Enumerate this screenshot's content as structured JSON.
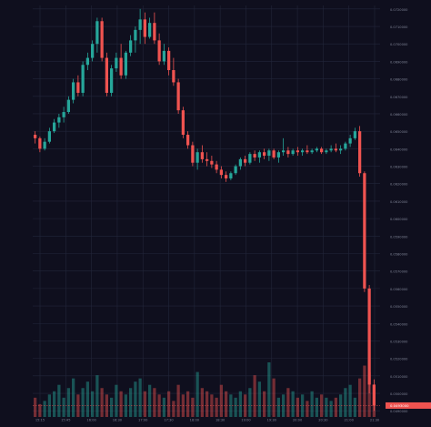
{
  "chart_data": {
    "type": "candlestick",
    "colors": {
      "background": "#0f0f1e",
      "grid": "#22263a",
      "up": "#26a69a",
      "down": "#ef5350",
      "axis_text": "#7f8496",
      "last_price_bg": "#ef5350"
    },
    "grid": true,
    "price_axis": "right",
    "y_ticks": [
      "0.0720000",
      "0.0710000",
      "0.0700000",
      "0.0690000",
      "0.0680000",
      "0.0670000",
      "0.0660000",
      "0.0650000",
      "0.0640000",
      "0.0630000",
      "0.0620000",
      "0.0610000",
      "0.0600000",
      "0.0590000",
      "0.0580000",
      "0.0570000",
      "0.0560000",
      "0.0550000",
      "0.0540000",
      "0.0530000",
      "0.0520000",
      "0.0510000",
      "0.0500000",
      "0.0490000"
    ],
    "ylim": [
      0.04875,
      0.0722
    ],
    "x_tick_labels": [
      "15:15",
      "15:45",
      "16:00",
      "16:30",
      "17:00",
      "17:30",
      "18:00",
      "18:30",
      "19:00",
      "19:30",
      "20:00",
      "20:30",
      "21:00",
      "21:30"
    ],
    "last_price": "0.0493000",
    "candles": [
      {
        "o": 0.0648,
        "h": 0.065,
        "l": 0.0643,
        "c": 0.0646
      },
      {
        "o": 0.0646,
        "h": 0.0647,
        "l": 0.0638,
        "c": 0.064
      },
      {
        "o": 0.064,
        "h": 0.0646,
        "l": 0.0639,
        "c": 0.0644
      },
      {
        "o": 0.0644,
        "h": 0.0652,
        "l": 0.0643,
        "c": 0.065
      },
      {
        "o": 0.065,
        "h": 0.0657,
        "l": 0.0649,
        "c": 0.0655
      },
      {
        "o": 0.0655,
        "h": 0.066,
        "l": 0.0652,
        "c": 0.0658
      },
      {
        "o": 0.0658,
        "h": 0.0664,
        "l": 0.0655,
        "c": 0.0661
      },
      {
        "o": 0.0661,
        "h": 0.067,
        "l": 0.066,
        "c": 0.0668
      },
      {
        "o": 0.0668,
        "h": 0.068,
        "l": 0.0666,
        "c": 0.0678
      },
      {
        "o": 0.0678,
        "h": 0.0682,
        "l": 0.067,
        "c": 0.0672
      },
      {
        "o": 0.0672,
        "h": 0.069,
        "l": 0.067,
        "c": 0.0688
      },
      {
        "o": 0.0688,
        "h": 0.0695,
        "l": 0.0685,
        "c": 0.0692
      },
      {
        "o": 0.0692,
        "h": 0.0702,
        "l": 0.069,
        "c": 0.07
      },
      {
        "o": 0.07,
        "h": 0.0715,
        "l": 0.0695,
        "c": 0.0713
      },
      {
        "o": 0.0713,
        "h": 0.0715,
        "l": 0.069,
        "c": 0.0692
      },
      {
        "o": 0.0692,
        "h": 0.0695,
        "l": 0.067,
        "c": 0.0672
      },
      {
        "o": 0.0672,
        "h": 0.0688,
        "l": 0.067,
        "c": 0.0686
      },
      {
        "o": 0.0686,
        "h": 0.0695,
        "l": 0.0684,
        "c": 0.0692
      },
      {
        "o": 0.0692,
        "h": 0.07,
        "l": 0.068,
        "c": 0.0682
      },
      {
        "o": 0.0682,
        "h": 0.0696,
        "l": 0.068,
        "c": 0.0695
      },
      {
        "o": 0.0695,
        "h": 0.0705,
        "l": 0.0693,
        "c": 0.0702
      },
      {
        "o": 0.0702,
        "h": 0.071,
        "l": 0.0695,
        "c": 0.0708
      },
      {
        "o": 0.0708,
        "h": 0.072,
        "l": 0.07,
        "c": 0.0714
      },
      {
        "o": 0.0714,
        "h": 0.0718,
        "l": 0.07,
        "c": 0.0704
      },
      {
        "o": 0.0704,
        "h": 0.0715,
        "l": 0.0703,
        "c": 0.0712
      },
      {
        "o": 0.0712,
        "h": 0.0718,
        "l": 0.07,
        "c": 0.0702
      },
      {
        "o": 0.0702,
        "h": 0.0706,
        "l": 0.0688,
        "c": 0.069
      },
      {
        "o": 0.069,
        "h": 0.07,
        "l": 0.0688,
        "c": 0.0696
      },
      {
        "o": 0.0696,
        "h": 0.0698,
        "l": 0.0682,
        "c": 0.0685
      },
      {
        "o": 0.0685,
        "h": 0.0692,
        "l": 0.0676,
        "c": 0.0678
      },
      {
        "o": 0.0678,
        "h": 0.068,
        "l": 0.066,
        "c": 0.0662
      },
      {
        "o": 0.0662,
        "h": 0.0664,
        "l": 0.0646,
        "c": 0.0648
      },
      {
        "o": 0.0648,
        "h": 0.065,
        "l": 0.064,
        "c": 0.0642
      },
      {
        "o": 0.0642,
        "h": 0.0644,
        "l": 0.063,
        "c": 0.0632
      },
      {
        "o": 0.0632,
        "h": 0.064,
        "l": 0.0628,
        "c": 0.0638
      },
      {
        "o": 0.0638,
        "h": 0.0642,
        "l": 0.0632,
        "c": 0.0634
      },
      {
        "o": 0.0634,
        "h": 0.0638,
        "l": 0.063,
        "c": 0.0633
      },
      {
        "o": 0.0633,
        "h": 0.0636,
        "l": 0.0629,
        "c": 0.0631
      },
      {
        "o": 0.0631,
        "h": 0.0633,
        "l": 0.0626,
        "c": 0.0628
      },
      {
        "o": 0.0628,
        "h": 0.063,
        "l": 0.0623,
        "c": 0.0625
      },
      {
        "o": 0.0625,
        "h": 0.0627,
        "l": 0.0621,
        "c": 0.0623
      },
      {
        "o": 0.0623,
        "h": 0.0627,
        "l": 0.0622,
        "c": 0.0626
      },
      {
        "o": 0.0626,
        "h": 0.0631,
        "l": 0.0625,
        "c": 0.063
      },
      {
        "o": 0.063,
        "h": 0.0635,
        "l": 0.0628,
        "c": 0.0634
      },
      {
        "o": 0.0634,
        "h": 0.0636,
        "l": 0.063,
        "c": 0.0632
      },
      {
        "o": 0.0632,
        "h": 0.0638,
        "l": 0.0631,
        "c": 0.0637
      },
      {
        "o": 0.0637,
        "h": 0.0639,
        "l": 0.0633,
        "c": 0.0635
      },
      {
        "o": 0.0635,
        "h": 0.0639,
        "l": 0.0632,
        "c": 0.0638
      },
      {
        "o": 0.0638,
        "h": 0.064,
        "l": 0.0634,
        "c": 0.0636
      },
      {
        "o": 0.0636,
        "h": 0.064,
        "l": 0.0633,
        "c": 0.0639
      },
      {
        "o": 0.0639,
        "h": 0.064,
        "l": 0.0634,
        "c": 0.0635
      },
      {
        "o": 0.0635,
        "h": 0.0639,
        "l": 0.0632,
        "c": 0.0638
      },
      {
        "o": 0.0638,
        "h": 0.0646,
        "l": 0.0636,
        "c": 0.0639
      },
      {
        "o": 0.0639,
        "h": 0.0641,
        "l": 0.0635,
        "c": 0.0637
      },
      {
        "o": 0.0637,
        "h": 0.064,
        "l": 0.0636,
        "c": 0.0639
      },
      {
        "o": 0.0639,
        "h": 0.0641,
        "l": 0.0636,
        "c": 0.0638
      },
      {
        "o": 0.0638,
        "h": 0.064,
        "l": 0.0636,
        "c": 0.0639
      },
      {
        "o": 0.0639,
        "h": 0.0642,
        "l": 0.0637,
        "c": 0.0638
      },
      {
        "o": 0.0638,
        "h": 0.064,
        "l": 0.0637,
        "c": 0.0639
      },
      {
        "o": 0.0639,
        "h": 0.0641,
        "l": 0.0638,
        "c": 0.064
      },
      {
        "o": 0.064,
        "h": 0.0641,
        "l": 0.0637,
        "c": 0.0638
      },
      {
        "o": 0.0638,
        "h": 0.064,
        "l": 0.0637,
        "c": 0.0639
      },
      {
        "o": 0.0639,
        "h": 0.0642,
        "l": 0.0638,
        "c": 0.064
      },
      {
        "o": 0.064,
        "h": 0.0643,
        "l": 0.0638,
        "c": 0.0639
      },
      {
        "o": 0.0639,
        "h": 0.0642,
        "l": 0.0637,
        "c": 0.064
      },
      {
        "o": 0.064,
        "h": 0.0644,
        "l": 0.0639,
        "c": 0.0643
      },
      {
        "o": 0.0643,
        "h": 0.0648,
        "l": 0.0641,
        "c": 0.0646
      },
      {
        "o": 0.0646,
        "h": 0.0652,
        "l": 0.0645,
        "c": 0.065
      },
      {
        "o": 0.065,
        "h": 0.0653,
        "l": 0.0624,
        "c": 0.0626
      },
      {
        "o": 0.0626,
        "h": 0.0627,
        "l": 0.0558,
        "c": 0.056
      },
      {
        "o": 0.056,
        "h": 0.0562,
        "l": 0.05,
        "c": 0.0505
      },
      {
        "o": 0.0505,
        "h": 0.0508,
        "l": 0.049,
        "c": 0.0493
      }
    ],
    "volumes": [
      6,
      4,
      5,
      7,
      8,
      10,
      6,
      9,
      12,
      7,
      9,
      11,
      8,
      13,
      9,
      7,
      6,
      10,
      8,
      7,
      9,
      11,
      12,
      8,
      10,
      9,
      7,
      6,
      8,
      5,
      10,
      7,
      8,
      6,
      14,
      9,
      8,
      7,
      6,
      10,
      8,
      7,
      6,
      8,
      7,
      9,
      13,
      11,
      8,
      17,
      12,
      6,
      7,
      9,
      8,
      6,
      7,
      5,
      8,
      6,
      7,
      6,
      5,
      6,
      7,
      9,
      10,
      6,
      12,
      16,
      14,
      10
    ]
  }
}
